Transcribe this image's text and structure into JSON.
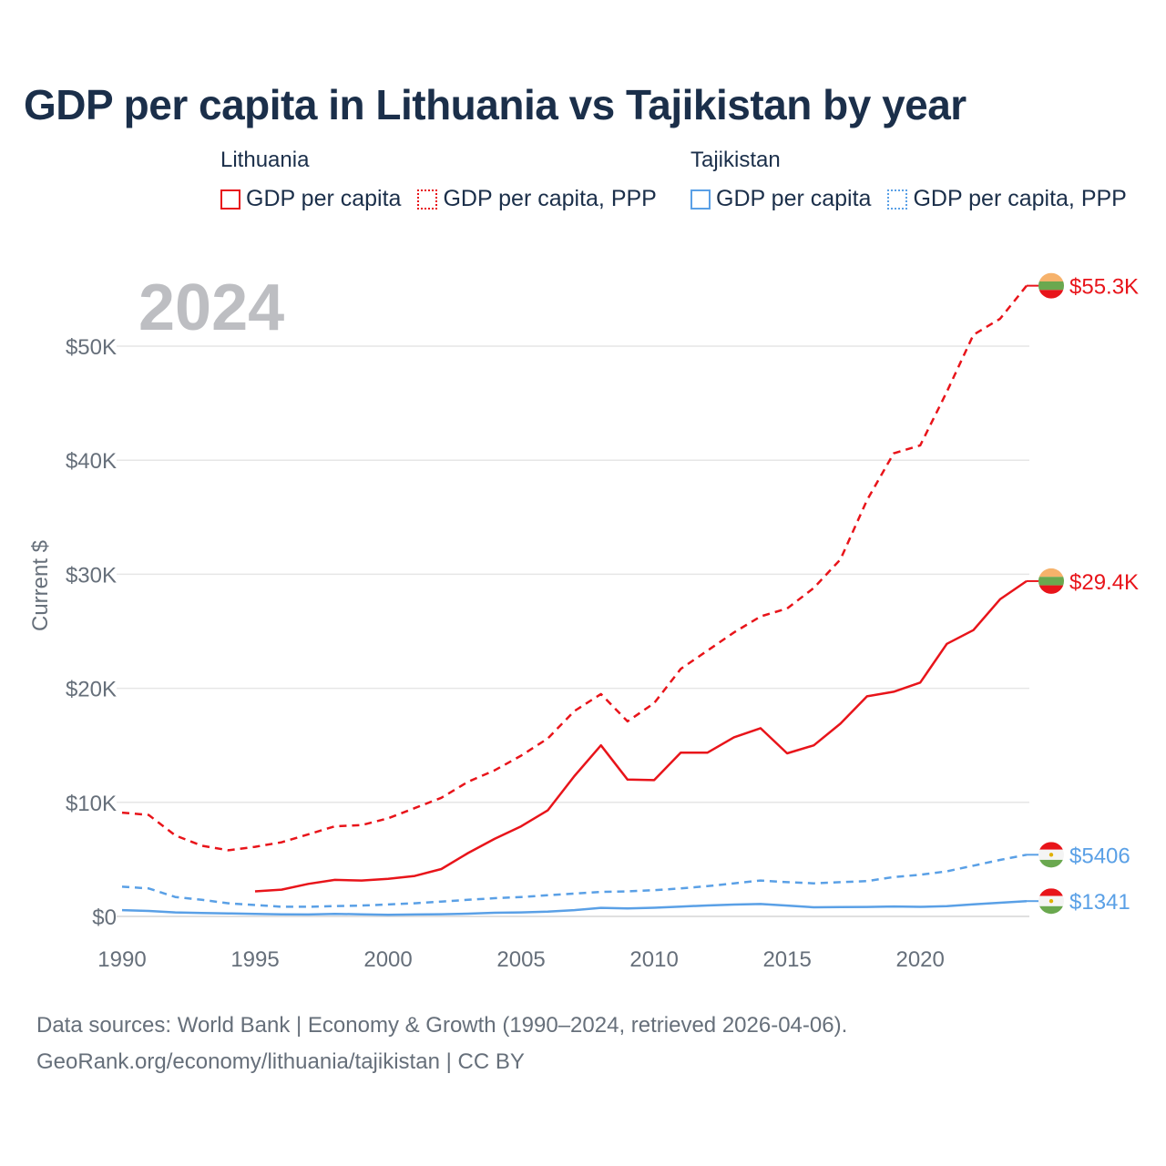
{
  "title": "GDP per capita in Lithuania vs Tajikistan by year",
  "legend": {
    "lithuania": {
      "country": "Lithuania",
      "gdp": "GDP per capita",
      "ppp": "GDP per capita, PPP"
    },
    "tajikistan": {
      "country": "Tajikistan",
      "gdp": "GDP per capita",
      "ppp": "GDP per capita, PPP"
    }
  },
  "colors": {
    "lithuania": "#e8141a",
    "tajikistan": "#5aa0e6",
    "year_label": "#bdbec2",
    "grid": "#e6e6e6",
    "axis_text": "#666f7a"
  },
  "footer": {
    "line1": "Data sources: World Bank | Economy & Growth (1990–2024, retrieved 2026-04-06).",
    "line2": "GeoRank.org/economy/lithuania/tajikistan | CC BY"
  },
  "chart_data": {
    "type": "line",
    "title": "GDP per capita in Lithuania vs Tajikistan by year",
    "year_label": "2024",
    "ylabel": "Current $",
    "xlabel": "",
    "xlim": [
      1990,
      2024
    ],
    "ylim": [
      0,
      50000
    ],
    "x_ticks": [
      1990,
      1995,
      2000,
      2005,
      2010,
      2015,
      2020
    ],
    "y_ticks": [
      {
        "value": 0,
        "label": "$0"
      },
      {
        "value": 10000,
        "label": "$10K"
      },
      {
        "value": 20000,
        "label": "$20K"
      },
      {
        "value": 30000,
        "label": "$30K"
      },
      {
        "value": 40000,
        "label": "$40K"
      },
      {
        "value": 50000,
        "label": "$50K"
      }
    ],
    "grid": true,
    "series": [
      {
        "name": "Lithuania GDP per capita, PPP",
        "country": "lithuania",
        "style": "dashed",
        "end_label": "$55.3K",
        "x": [
          1990,
          1991,
          1992,
          1993,
          1994,
          1995,
          1996,
          1997,
          1998,
          1999,
          2000,
          2001,
          2002,
          2003,
          2004,
          2005,
          2006,
          2007,
          2008,
          2009,
          2010,
          2011,
          2012,
          2013,
          2014,
          2015,
          2016,
          2017,
          2018,
          2019,
          2020,
          2021,
          2022,
          2023,
          2024
        ],
        "values": [
          9100,
          8900,
          7100,
          6200,
          5800,
          6100,
          6500,
          7200,
          7900,
          8000,
          8600,
          9500,
          10400,
          11800,
          12800,
          14100,
          15600,
          18000,
          19500,
          17100,
          18700,
          21700,
          23300,
          24900,
          26300,
          27000,
          28800,
          31300,
          36500,
          40600,
          41300,
          46000,
          51000,
          52400,
          55300
        ]
      },
      {
        "name": "Lithuania GDP per capita",
        "country": "lithuania",
        "style": "solid",
        "end_label": "$29.4K",
        "x": [
          1995,
          1996,
          1997,
          1998,
          1999,
          2000,
          2001,
          2002,
          2003,
          2004,
          2005,
          2006,
          2007,
          2008,
          2009,
          2010,
          2011,
          2012,
          2013,
          2014,
          2015,
          2016,
          2017,
          2018,
          2019,
          2020,
          2021,
          2022,
          2023,
          2024
        ],
        "values": [
          2200,
          2350,
          2850,
          3200,
          3150,
          3300,
          3550,
          4150,
          5550,
          6800,
          7900,
          9300,
          12300,
          15000,
          12000,
          11950,
          14350,
          14350,
          15700,
          16500,
          14300,
          15000,
          16900,
          19300,
          19700,
          20500,
          23900,
          25100,
          27800,
          29400
        ]
      },
      {
        "name": "Tajikistan GDP per capita, PPP",
        "country": "tajikistan",
        "style": "dashed",
        "end_label": "$5406",
        "x": [
          1990,
          1991,
          1992,
          1993,
          1994,
          1995,
          1996,
          1997,
          1998,
          1999,
          2000,
          2001,
          2002,
          2003,
          2004,
          2005,
          2006,
          2007,
          2008,
          2009,
          2010,
          2011,
          2012,
          2013,
          2014,
          2015,
          2016,
          2017,
          2018,
          2019,
          2020,
          2021,
          2022,
          2023,
          2024
        ],
        "values": [
          2600,
          2450,
          1700,
          1450,
          1150,
          1000,
          850,
          850,
          900,
          950,
          1050,
          1150,
          1300,
          1450,
          1600,
          1700,
          1850,
          2000,
          2150,
          2200,
          2300,
          2450,
          2650,
          2900,
          3150,
          3000,
          2900,
          3000,
          3100,
          3450,
          3650,
          3950,
          4450,
          4950,
          5406
        ]
      },
      {
        "name": "Tajikistan GDP per capita",
        "country": "tajikistan",
        "style": "solid",
        "end_label": "$1341",
        "x": [
          1990,
          1991,
          1992,
          1993,
          1994,
          1995,
          1996,
          1997,
          1998,
          1999,
          2000,
          2001,
          2002,
          2003,
          2004,
          2005,
          2006,
          2007,
          2008,
          2009,
          2010,
          2011,
          2012,
          2013,
          2014,
          2015,
          2016,
          2017,
          2018,
          2019,
          2020,
          2021,
          2022,
          2023,
          2024
        ],
        "values": [
          550,
          480,
          350,
          300,
          260,
          220,
          180,
          170,
          220,
          180,
          140,
          170,
          190,
          240,
          320,
          350,
          420,
          550,
          750,
          700,
          760,
          860,
          960,
          1040,
          1090,
          950,
          800,
          820,
          830,
          870,
          840,
          900,
          1060,
          1200,
          1341
        ]
      }
    ]
  }
}
